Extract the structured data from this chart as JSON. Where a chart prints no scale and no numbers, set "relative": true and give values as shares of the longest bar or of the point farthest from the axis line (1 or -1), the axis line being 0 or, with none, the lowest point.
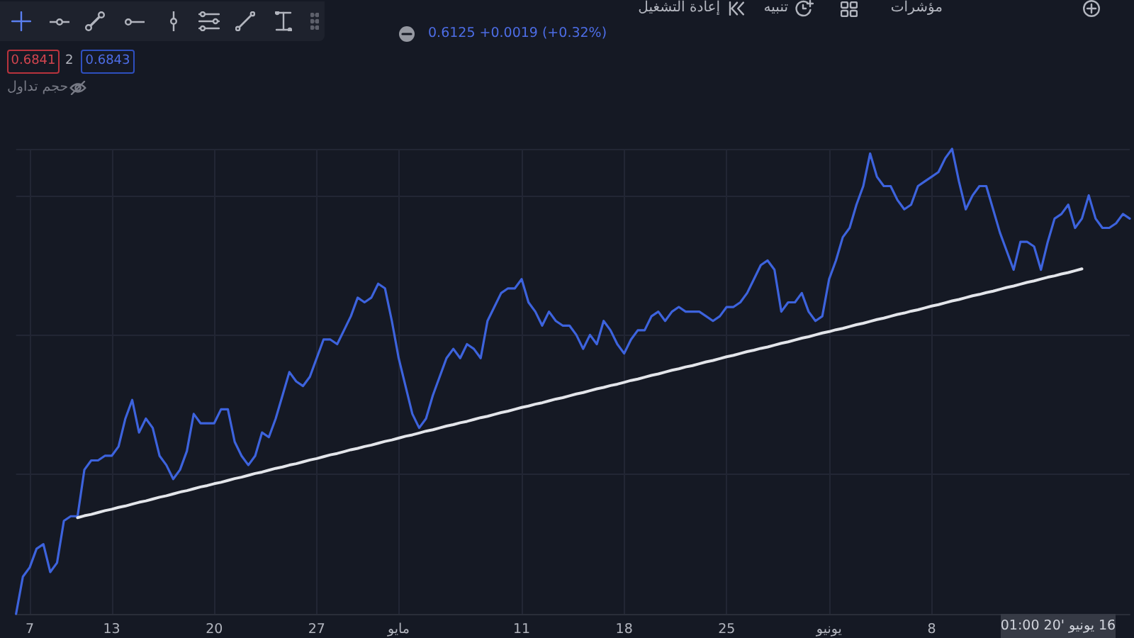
{
  "chart_data": {
    "type": "line",
    "relative": true,
    "grid": true,
    "categories": [
      null,
      null,
      "7",
      null,
      null,
      null,
      null,
      null,
      null,
      null,
      null,
      null,
      null,
      null,
      "13",
      null,
      null,
      null,
      null,
      null,
      null,
      null,
      null,
      null,
      null,
      null,
      null,
      null,
      null,
      "20",
      null,
      null,
      null,
      null,
      null,
      null,
      null,
      null,
      null,
      null,
      null,
      null,
      null,
      null,
      "27",
      null,
      null,
      null,
      null,
      null,
      null,
      null,
      null,
      null,
      null,
      null,
      "مايو",
      null,
      null,
      null,
      null,
      null,
      null,
      null,
      null,
      null,
      null,
      null,
      null,
      null,
      null,
      null,
      null,
      null,
      "11",
      null,
      null,
      null,
      null,
      null,
      null,
      null,
      null,
      null,
      null,
      null,
      null,
      null,
      null,
      "18",
      null,
      null,
      null,
      null,
      null,
      null,
      null,
      null,
      null,
      null,
      null,
      null,
      null,
      null,
      "25",
      null,
      null,
      null,
      null,
      null,
      null,
      null,
      null,
      null,
      null,
      null,
      null,
      null,
      null,
      "يونيو",
      null,
      null,
      null,
      null,
      null,
      null,
      null,
      null,
      null,
      null,
      null,
      null,
      null,
      null,
      "8",
      null,
      null,
      null,
      null,
      null,
      null,
      null,
      null,
      null,
      null,
      null,
      null,
      null,
      null,
      null,
      null,
      null,
      null,
      null,
      null,
      null,
      null,
      null,
      null,
      null,
      null,
      null,
      null,
      null
    ],
    "series": [
      {
        "color": "#3d63dd",
        "values": [
          0,
          0.08,
          0.1,
          0.14,
          0.15,
          0.09,
          0.11,
          0.2,
          0.21,
          0.21,
          0.31,
          0.33,
          0.33,
          0.34,
          0.34,
          0.36,
          0.42,
          0.46,
          0.39,
          0.42,
          0.4,
          0.34,
          0.32,
          0.29,
          0.31,
          0.35,
          0.43,
          0.41,
          0.41,
          0.41,
          0.44,
          0.44,
          0.37,
          0.34,
          0.32,
          0.34,
          0.39,
          0.38,
          0.42,
          0.47,
          0.52,
          0.5,
          0.49,
          0.51,
          0.55,
          0.59,
          0.59,
          0.58,
          0.61,
          0.64,
          0.68,
          0.67,
          0.68,
          0.71,
          0.7,
          0.63,
          0.55,
          0.49,
          0.43,
          0.4,
          0.42,
          0.47,
          0.51,
          0.55,
          0.57,
          0.55,
          0.58,
          0.57,
          0.55,
          0.63,
          0.66,
          0.69,
          0.7,
          0.7,
          0.72,
          0.67,
          0.65,
          0.62,
          0.65,
          0.63,
          0.62,
          0.62,
          0.6,
          0.57,
          0.6,
          0.58,
          0.63,
          0.61,
          0.58,
          0.56,
          0.59,
          0.61,
          0.61,
          0.64,
          0.65,
          0.63,
          0.65,
          0.66,
          0.65,
          0.65,
          0.65,
          0.64,
          0.63,
          0.64,
          0.66,
          0.66,
          0.67,
          0.69,
          0.72,
          0.75,
          0.76,
          0.74,
          0.65,
          0.67,
          0.67,
          0.69,
          0.65,
          0.63,
          0.64,
          0.72,
          0.76,
          0.81,
          0.83,
          0.88,
          0.92,
          0.99,
          0.94,
          0.92,
          0.92,
          0.89,
          0.87,
          0.88,
          0.92,
          0.93,
          0.94,
          0.95,
          0.98,
          1,
          0.93,
          0.87,
          0.9,
          0.92,
          0.92,
          0.87,
          0.82,
          0.78,
          0.74,
          0.8,
          0.8,
          0.79,
          0.74,
          0.8,
          0.85,
          0.86,
          0.88,
          0.83,
          0.85,
          0.9,
          0.85,
          0.83,
          0.83,
          0.84,
          0.86,
          0.85
        ]
      },
      {
        "color": "#e3e5ea",
        "values": [
          null,
          null,
          null,
          null,
          null,
          null,
          null,
          null,
          null,
          0.207,
          0.211,
          0.214,
          0.218,
          0.222,
          0.225,
          0.229,
          0.232,
          0.236,
          0.24,
          0.243,
          0.247,
          0.251,
          0.254,
          0.258,
          0.262,
          0.265,
          0.269,
          0.273,
          0.276,
          0.28,
          0.283,
          0.287,
          0.291,
          0.294,
          0.298,
          0.302,
          0.305,
          0.309,
          0.313,
          0.316,
          0.32,
          0.323,
          0.327,
          0.331,
          0.334,
          0.338,
          0.342,
          0.345,
          0.349,
          0.353,
          0.356,
          0.36,
          0.363,
          0.367,
          0.371,
          0.374,
          0.378,
          0.382,
          0.385,
          0.389,
          0.393,
          0.396,
          0.4,
          0.404,
          0.407,
          0.411,
          0.414,
          0.418,
          0.422,
          0.425,
          0.429,
          0.433,
          0.436,
          0.44,
          0.444,
          0.447,
          0.451,
          0.454,
          0.458,
          0.462,
          0.465,
          0.469,
          0.473,
          0.476,
          0.48,
          0.484,
          0.487,
          0.491,
          0.494,
          0.498,
          0.502,
          0.505,
          0.509,
          0.513,
          0.516,
          0.52,
          0.524,
          0.527,
          0.531,
          0.534,
          0.538,
          0.542,
          0.545,
          0.549,
          0.553,
          0.556,
          0.56,
          0.564,
          0.567,
          0.571,
          0.574,
          0.578,
          0.582,
          0.585,
          0.589,
          0.593,
          0.596,
          0.6,
          0.604,
          0.607,
          0.611,
          0.614,
          0.618,
          0.622,
          0.625,
          0.629,
          0.633,
          0.636,
          0.64,
          0.644,
          0.647,
          0.651,
          0.654,
          0.658,
          0.662,
          0.665,
          0.669,
          0.673,
          0.676,
          0.68,
          0.684,
          0.687,
          0.691,
          0.694,
          0.698,
          0.702,
          0.705,
          0.709,
          0.713,
          0.716,
          0.72,
          0.724,
          0.727,
          0.731,
          0.734,
          0.738,
          0.742,
          null,
          null,
          null,
          null,
          null,
          null,
          null
        ]
      }
    ],
    "annotations": [
      "0.6125 +0.0019 (+0.32%)",
      "0.6841",
      "2",
      "0.6843",
      "حجم تداول",
      "إعادة التشغيل",
      "تنبيه",
      "مؤشرات",
      "16 يونيو '20 01:00"
    ]
  }
}
